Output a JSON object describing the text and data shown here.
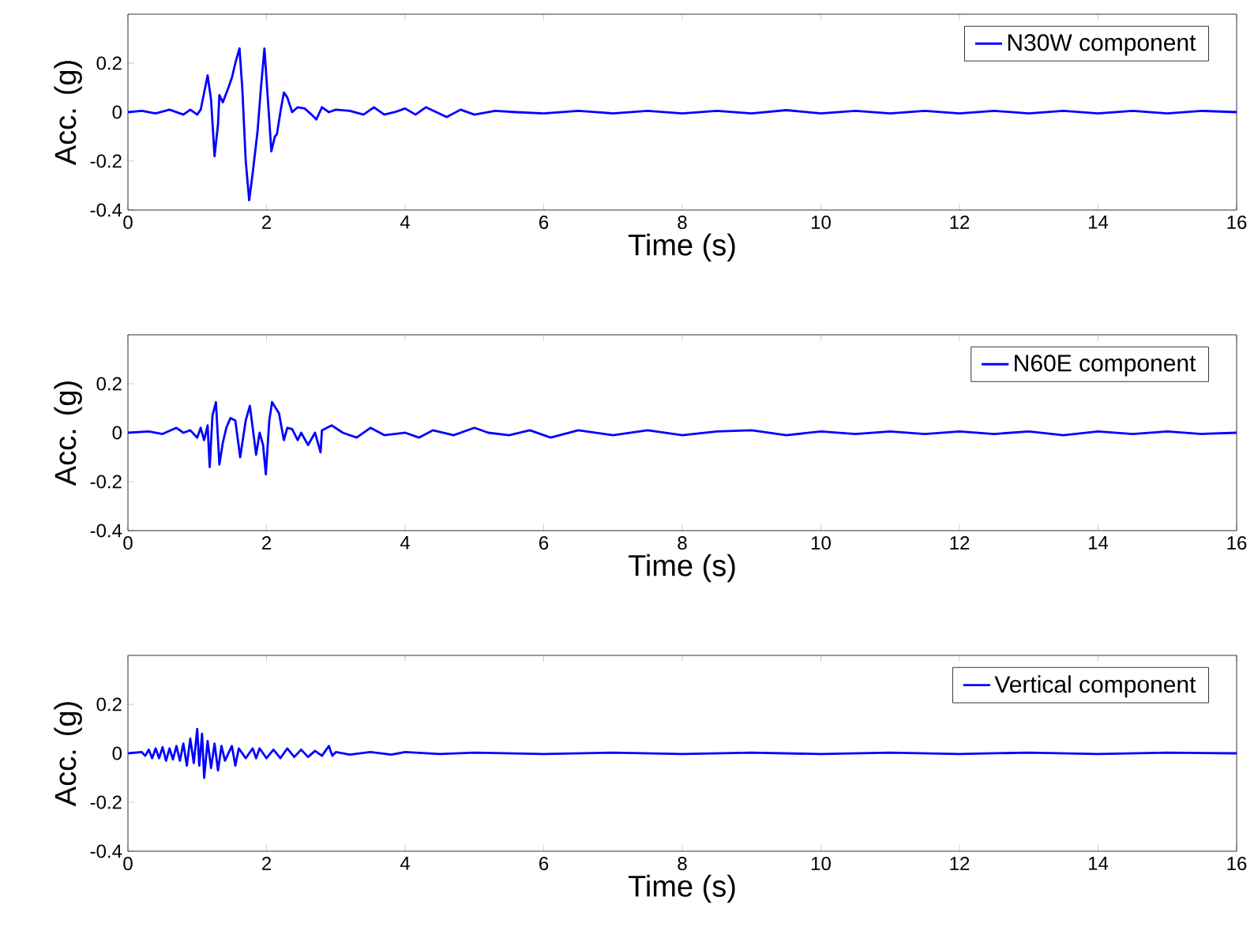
{
  "chart_data": [
    {
      "type": "line",
      "xlabel": "Time (s)",
      "ylabel": "Acc. (g)",
      "xlim": [
        0,
        16
      ],
      "xticks": [
        0,
        2,
        4,
        6,
        8,
        10,
        12,
        14,
        16
      ],
      "ylim": [
        -0.4,
        0.4
      ],
      "yticks": [
        -0.4,
        -0.2,
        0,
        0.2
      ],
      "legend": "top right",
      "series": [
        {
          "name": "N30W component",
          "color": "#0000ff",
          "x": [
            0,
            0.2,
            0.4,
            0.6,
            0.8,
            0.9,
            1.0,
            1.05,
            1.1,
            1.15,
            1.2,
            1.25,
            1.3,
            1.32,
            1.37,
            1.45,
            1.5,
            1.55,
            1.61,
            1.65,
            1.7,
            1.75,
            1.8,
            1.87,
            1.92,
            1.97,
            2.02,
            2.07,
            2.12,
            2.15,
            2.2,
            2.25,
            2.3,
            2.37,
            2.45,
            2.55,
            2.65,
            2.72,
            2.8,
            2.9,
            3.0,
            3.2,
            3.4,
            3.55,
            3.7,
            3.85,
            4.0,
            4.15,
            4.3,
            4.45,
            4.6,
            4.8,
            5.0,
            5.3,
            5.6,
            6.0,
            6.5,
            7.0,
            7.5,
            8.0,
            8.5,
            9.0,
            9.5,
            10,
            10.5,
            11,
            11.5,
            12,
            12.5,
            13,
            13.5,
            14,
            14.5,
            15,
            15.5,
            16
          ],
          "values": [
            0,
            0.005,
            -0.005,
            0.01,
            -0.01,
            0.01,
            -0.01,
            0.01,
            0.08,
            0.15,
            0.05,
            -0.18,
            -0.05,
            0.07,
            0.04,
            0.1,
            0.14,
            0.2,
            0.26,
            0.1,
            -0.2,
            -0.36,
            -0.25,
            -0.08,
            0.1,
            0.26,
            0.05,
            -0.16,
            -0.1,
            -0.09,
            0.0,
            0.08,
            0.06,
            0.0,
            0.02,
            0.015,
            -0.01,
            -0.03,
            0.02,
            0.0,
            0.01,
            0.005,
            -0.01,
            0.02,
            -0.01,
            0.0,
            0.015,
            -0.01,
            0.02,
            0.0,
            -0.02,
            0.01,
            -0.01,
            0.005,
            0.0,
            -0.005,
            0.005,
            -0.005,
            0.005,
            -0.005,
            0.005,
            -0.005,
            0.008,
            -0.005,
            0.005,
            -0.005,
            0.005,
            -0.005,
            0.005,
            -0.005,
            0.005,
            -0.005,
            0.005,
            -0.005,
            0.005,
            0
          ]
        }
      ]
    },
    {
      "type": "line",
      "xlabel": "Time (s)",
      "ylabel": "Acc. (g)",
      "xlim": [
        0,
        16
      ],
      "xticks": [
        0,
        2,
        4,
        6,
        8,
        10,
        12,
        14,
        16
      ],
      "ylim": [
        -0.4,
        0.4
      ],
      "yticks": [
        -0.4,
        -0.2,
        0,
        0.2
      ],
      "legend": "top right",
      "series": [
        {
          "name": "N60E component",
          "color": "#0000ff",
          "x": [
            0,
            0.3,
            0.5,
            0.7,
            0.8,
            0.9,
            1.0,
            1.05,
            1.1,
            1.15,
            1.18,
            1.22,
            1.27,
            1.32,
            1.37,
            1.42,
            1.48,
            1.55,
            1.62,
            1.7,
            1.76,
            1.85,
            1.9,
            1.95,
            1.99,
            2.04,
            2.08,
            2.18,
            2.25,
            2.3,
            2.37,
            2.45,
            2.5,
            2.6,
            2.7,
            2.78,
            2.8,
            2.94,
            3.1,
            3.3,
            3.5,
            3.7,
            4.0,
            4.2,
            4.4,
            4.7,
            5.0,
            5.2,
            5.5,
            5.8,
            6.1,
            6.5,
            7.0,
            7.5,
            8.0,
            8.5,
            9.0,
            9.5,
            10,
            10.5,
            11,
            11.5,
            12,
            12.5,
            13,
            13.5,
            14,
            14.5,
            15,
            15.5,
            16
          ],
          "values": [
            0,
            0.005,
            -0.005,
            0.02,
            0.0,
            0.01,
            -0.02,
            0.02,
            -0.03,
            0.03,
            -0.14,
            0.07,
            0.125,
            -0.13,
            -0.04,
            0.02,
            0.06,
            0.05,
            -0.1,
            0.05,
            0.11,
            -0.09,
            0,
            -0.05,
            -0.17,
            0.05,
            0.125,
            0.08,
            -0.03,
            0.02,
            0.015,
            -0.03,
            0.0,
            -0.05,
            0.0,
            -0.08,
            0.01,
            0.03,
            0.0,
            -0.02,
            0.02,
            -0.01,
            0.0,
            -0.02,
            0.01,
            -0.01,
            0.02,
            0.0,
            -0.01,
            0.01,
            -0.02,
            0.01,
            -0.01,
            0.01,
            -0.01,
            0.005,
            0.01,
            -0.01,
            0.005,
            -0.005,
            0.005,
            -0.005,
            0.005,
            -0.005,
            0.005,
            -0.01,
            0.005,
            -0.005,
            0.005,
            -0.005,
            0
          ]
        }
      ]
    },
    {
      "type": "line",
      "xlabel": "Time (s)",
      "ylabel": "Acc. (g)",
      "xlim": [
        0,
        16
      ],
      "xticks": [
        0,
        2,
        4,
        6,
        8,
        10,
        12,
        14,
        16
      ],
      "ylim": [
        -0.4,
        0.4
      ],
      "yticks": [
        -0.4,
        -0.2,
        0,
        0.2
      ],
      "legend": "top right",
      "series": [
        {
          "name": "Vertical component",
          "color": "#0000ff",
          "x": [
            0,
            0.2,
            0.25,
            0.3,
            0.35,
            0.4,
            0.45,
            0.5,
            0.55,
            0.6,
            0.65,
            0.7,
            0.75,
            0.8,
            0.85,
            0.9,
            0.95,
            1.0,
            1.03,
            1.07,
            1.1,
            1.15,
            1.2,
            1.25,
            1.3,
            1.35,
            1.4,
            1.5,
            1.55,
            1.6,
            1.7,
            1.8,
            1.85,
            1.9,
            2.0,
            2.1,
            2.2,
            2.3,
            2.4,
            2.5,
            2.6,
            2.7,
            2.8,
            2.85,
            2.9,
            2.95,
            3.0,
            3.2,
            3.5,
            3.8,
            4.0,
            4.5,
            5,
            6,
            7,
            8,
            9,
            10,
            11,
            12,
            13,
            14,
            15,
            16
          ],
          "values": [
            0,
            0.005,
            -0.01,
            0.015,
            -0.02,
            0.02,
            -0.02,
            0.025,
            -0.03,
            0.02,
            -0.025,
            0.03,
            -0.03,
            0.04,
            -0.05,
            0.06,
            -0.04,
            0.1,
            -0.05,
            0.08,
            -0.1,
            0.05,
            -0.06,
            0.04,
            -0.07,
            0.03,
            -0.03,
            0.03,
            -0.05,
            0.02,
            -0.02,
            0.02,
            -0.02,
            0.02,
            -0.02,
            0.015,
            -0.02,
            0.02,
            -0.015,
            0.015,
            -0.015,
            0.01,
            -0.01,
            0.01,
            0.03,
            -0.01,
            0.005,
            -0.005,
            0.005,
            -0.005,
            0.005,
            -0.003,
            0.003,
            -0.003,
            0.003,
            -0.003,
            0.003,
            -0.003,
            0.003,
            -0.003,
            0.003,
            -0.003,
            0.003,
            0
          ]
        }
      ]
    }
  ]
}
